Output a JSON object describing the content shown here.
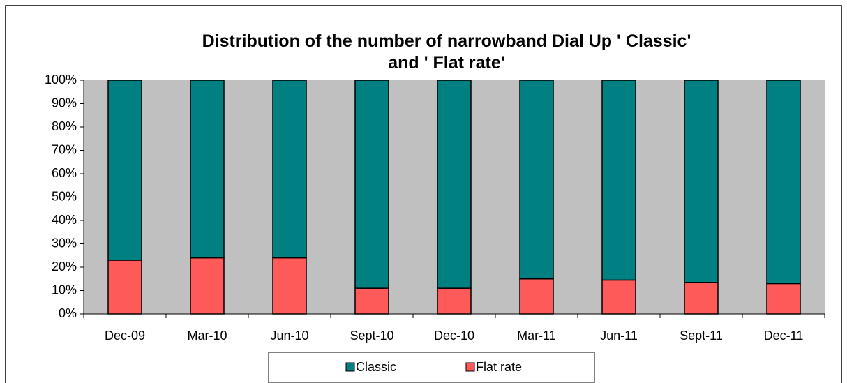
{
  "chart_data": {
    "type": "stacked_bar",
    "title": "Distribution of the number of narrowband Dial Up ' Classic' and ' Flat rate'",
    "categories": [
      "Dec-09",
      "Mar-10",
      "Jun-10",
      "Sept-10",
      "Dec-10",
      "Mar-11",
      "Jun-11",
      "Sept-11",
      "Dec-11"
    ],
    "series": [
      {
        "name": "Classic",
        "color": "#008080",
        "values": [
          77,
          76,
          76,
          89,
          89,
          85,
          85.5,
          86.5,
          87
        ]
      },
      {
        "name": "Flat rate",
        "color": "#ff5a5a",
        "values": [
          23,
          24,
          24,
          11,
          11,
          15,
          14.5,
          13.5,
          13
        ]
      }
    ],
    "ylim": [
      0,
      100
    ],
    "yticks": [
      {
        "value": 0,
        "label": "0%"
      },
      {
        "value": 10,
        "label": "10%"
      },
      {
        "value": 20,
        "label": "20%"
      },
      {
        "value": 30,
        "label": "30%"
      },
      {
        "value": 40,
        "label": "40%"
      },
      {
        "value": 50,
        "label": "50%"
      },
      {
        "value": 60,
        "label": "60%"
      },
      {
        "value": 70,
        "label": "70%"
      },
      {
        "value": 80,
        "label": "80%"
      },
      {
        "value": 90,
        "label": "90%"
      },
      {
        "value": 100,
        "label": "100%"
      }
    ],
    "legend": "bottom"
  }
}
